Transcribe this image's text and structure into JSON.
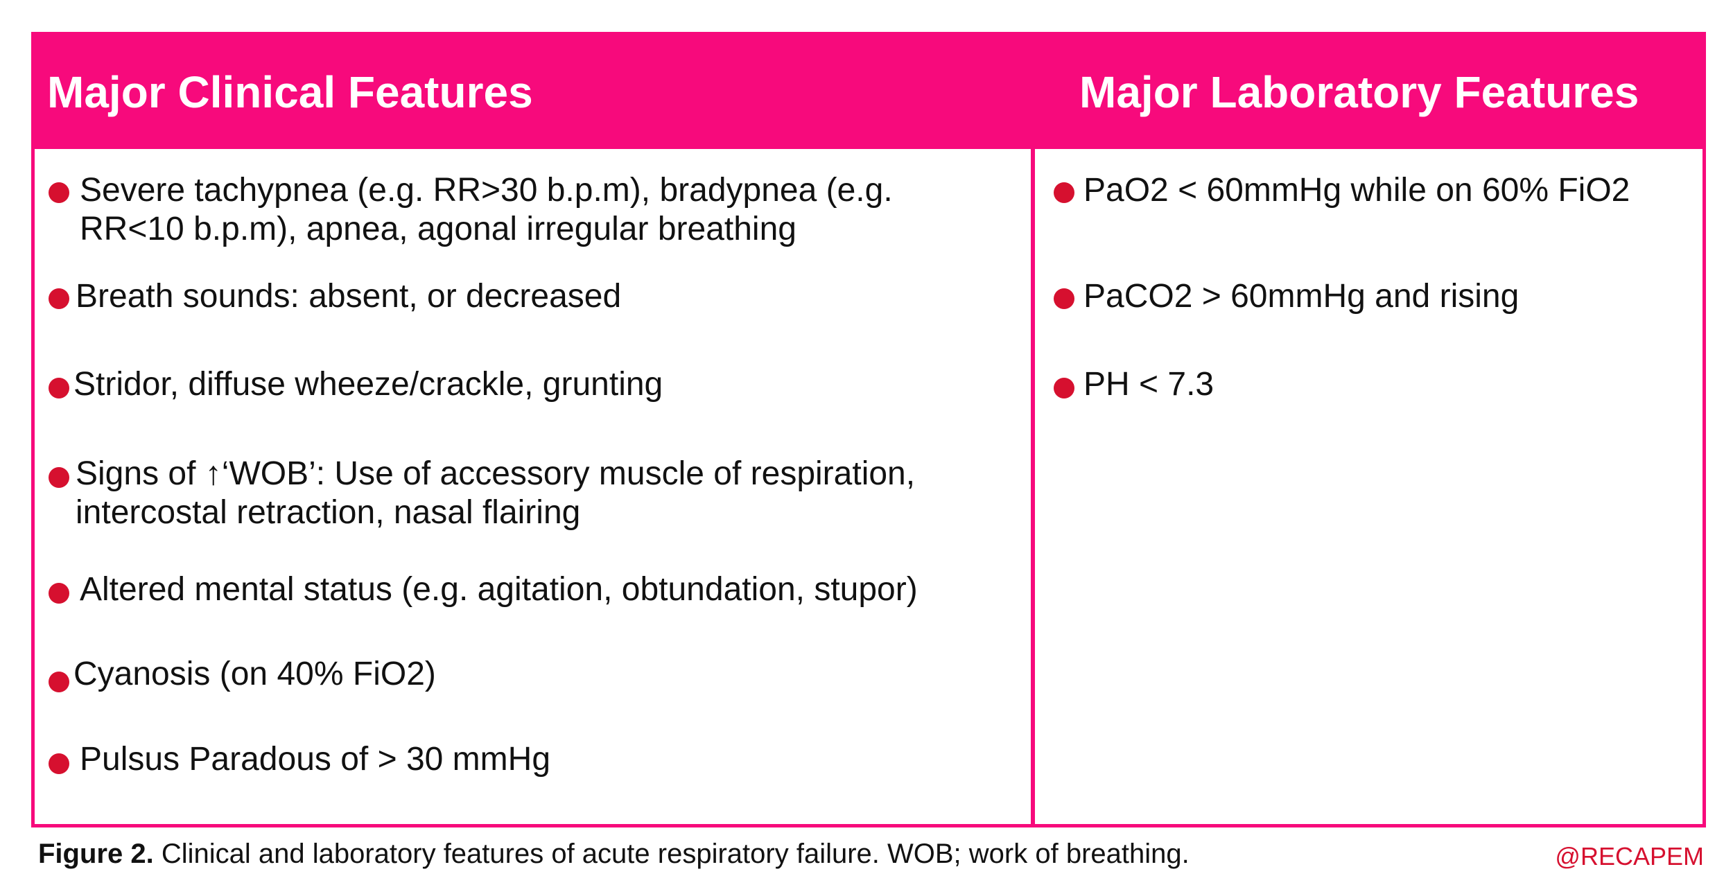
{
  "table": {
    "headers": {
      "clinical": "Major Clinical Features",
      "laboratory": "Major Laboratory Features"
    },
    "clinical_items": [
      {
        "line1": "Severe tachypnea (e.g. RR>30 b.p.m), bradypnea (e.g.",
        "line2": "RR<10 b.p.m), apnea, agonal irregular breathing"
      },
      {
        "line1": "Breath sounds: absent, or decreased"
      },
      {
        "line1": "Stridor, diffuse wheeze/crackle, grunting"
      },
      {
        "line1": "Signs of ↑‘WOB’: Use of accessory muscle of respiration,",
        "line2": "intercostal retraction, nasal flairing"
      },
      {
        "line1": "Altered mental status (e.g. agitation, obtundation, stupor)"
      },
      {
        "line1": "Cyanosis (on 40% FiO2)"
      },
      {
        "line1": "Pulsus Paradous of > 30 mmHg"
      }
    ],
    "laboratory_items": [
      {
        "line1": "PaO2 < 60mmHg while on 60% FiO2"
      },
      {
        "line1": "PaCO2 > 60mmHg and rising"
      },
      {
        "line1": "PH < 7.3"
      }
    ]
  },
  "caption": {
    "label": "Figure 2.",
    "text": " Clinical and laboratory features of acute respiratory failure. WOB; work of breathing."
  },
  "handle": "@RECAPEM",
  "colors": {
    "accent": "#f70a7c",
    "bullet": "#d6102f",
    "handle": "#d6102f"
  }
}
